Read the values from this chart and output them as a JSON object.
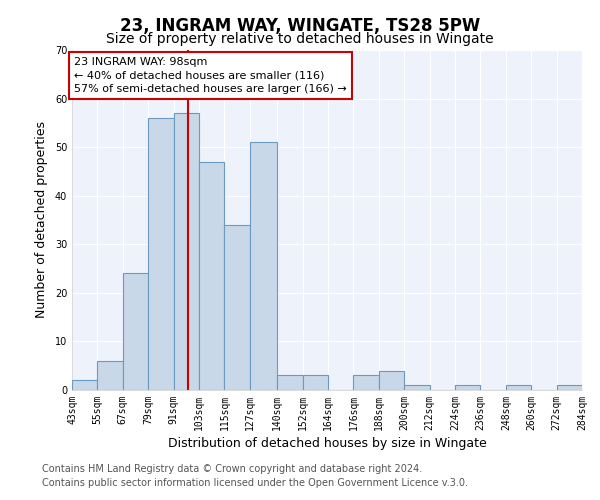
{
  "title": "23, INGRAM WAY, WINGATE, TS28 5PW",
  "subtitle": "Size of property relative to detached houses in Wingate",
  "xlabel": "Distribution of detached houses by size in Wingate",
  "ylabel": "Number of detached properties",
  "bin_edges": [
    43,
    55,
    67,
    79,
    91,
    103,
    115,
    127,
    140,
    152,
    164,
    176,
    188,
    200,
    212,
    224,
    236,
    248,
    260,
    272,
    284
  ],
  "bar_heights": [
    2,
    6,
    24,
    56,
    57,
    47,
    34,
    51,
    3,
    3,
    0,
    3,
    4,
    1,
    0,
    1,
    0,
    1,
    0,
    1
  ],
  "bar_color": "#c8d8e8",
  "bar_edge_color": "#6a9abf",
  "property_line_x": 98,
  "property_line_color": "#cc0000",
  "annotation_title": "23 INGRAM WAY: 98sqm",
  "annotation_line1": "← 40% of detached houses are smaller (116)",
  "annotation_line2": "57% of semi-detached houses are larger (166) →",
  "annotation_box_color": "#ffffff",
  "annotation_box_edge_color": "#cc0000",
  "tick_labels": [
    "43sqm",
    "55sqm",
    "67sqm",
    "79sqm",
    "91sqm",
    "103sqm",
    "115sqm",
    "127sqm",
    "140sqm",
    "152sqm",
    "164sqm",
    "176sqm",
    "188sqm",
    "200sqm",
    "212sqm",
    "224sqm",
    "236sqm",
    "248sqm",
    "260sqm",
    "272sqm",
    "284sqm"
  ],
  "ylim": [
    0,
    70
  ],
  "yticks": [
    0,
    10,
    20,
    30,
    40,
    50,
    60,
    70
  ],
  "footer_line1": "Contains HM Land Registry data © Crown copyright and database right 2024.",
  "footer_line2": "Contains public sector information licensed under the Open Government Licence v.3.0.",
  "background_color": "#ffffff",
  "plot_bg_color": "#eef2fa",
  "grid_color": "#ffffff",
  "title_fontsize": 12,
  "subtitle_fontsize": 10,
  "axis_label_fontsize": 9,
  "tick_fontsize": 7,
  "footer_fontsize": 7,
  "annotation_fontsize": 8
}
